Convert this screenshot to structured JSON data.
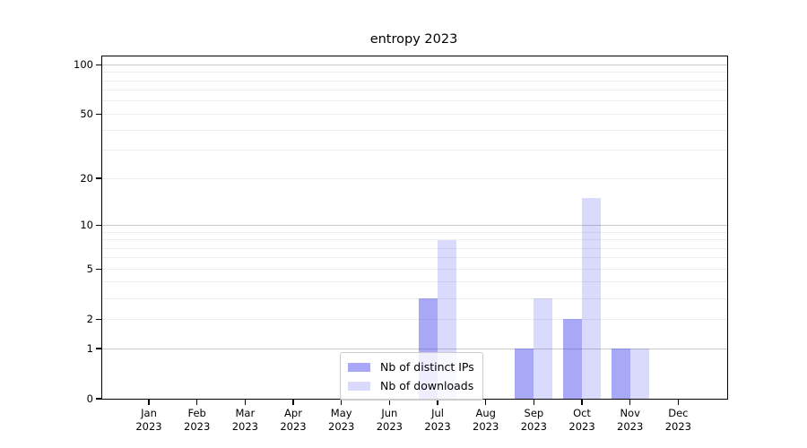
{
  "title": "entropy 2023",
  "chart_data": {
    "type": "bar",
    "title": "entropy 2023",
    "categories": [
      "Jan 2023",
      "Feb 2023",
      "Mar 2023",
      "Apr 2023",
      "May 2023",
      "Jun 2023",
      "Jul 2023",
      "Aug 2023",
      "Sep 2023",
      "Oct 2023",
      "Nov 2023",
      "Dec 2023"
    ],
    "x_tick_months": [
      "Jan",
      "Feb",
      "Mar",
      "Apr",
      "May",
      "Jun",
      "Jul",
      "Aug",
      "Sep",
      "Oct",
      "Nov",
      "Dec"
    ],
    "x_tick_year": "2023",
    "series": [
      {
        "name": "Nb of distinct IPs",
        "color": "#5151f0",
        "alpha": 0.5,
        "values": [
          0,
          0,
          0,
          0,
          0,
          0,
          3,
          0,
          1,
          2,
          1,
          0
        ]
      },
      {
        "name": "Nb of downloads",
        "color": "#5151f0",
        "alpha": 0.21,
        "values": [
          0,
          0,
          0,
          0,
          0,
          0,
          8,
          0,
          3,
          15,
          1,
          0
        ]
      }
    ],
    "y_ticks": [
      0,
      1,
      2,
      5,
      10,
      20,
      50,
      100
    ],
    "y_scale": "log10(1+y)",
    "ylim": [
      0,
      112
    ],
    "grid": true,
    "legend_position": "lower center",
    "gridlines": {
      "major": [
        1,
        10,
        100
      ],
      "minor": [
        2,
        3,
        4,
        5,
        6,
        7,
        8,
        9,
        20,
        30,
        40,
        50,
        60,
        70,
        80,
        90
      ]
    },
    "grid_colors": {
      "major": "#c9c9c9",
      "minor": "#ececec"
    },
    "spine_color": "#000000"
  }
}
